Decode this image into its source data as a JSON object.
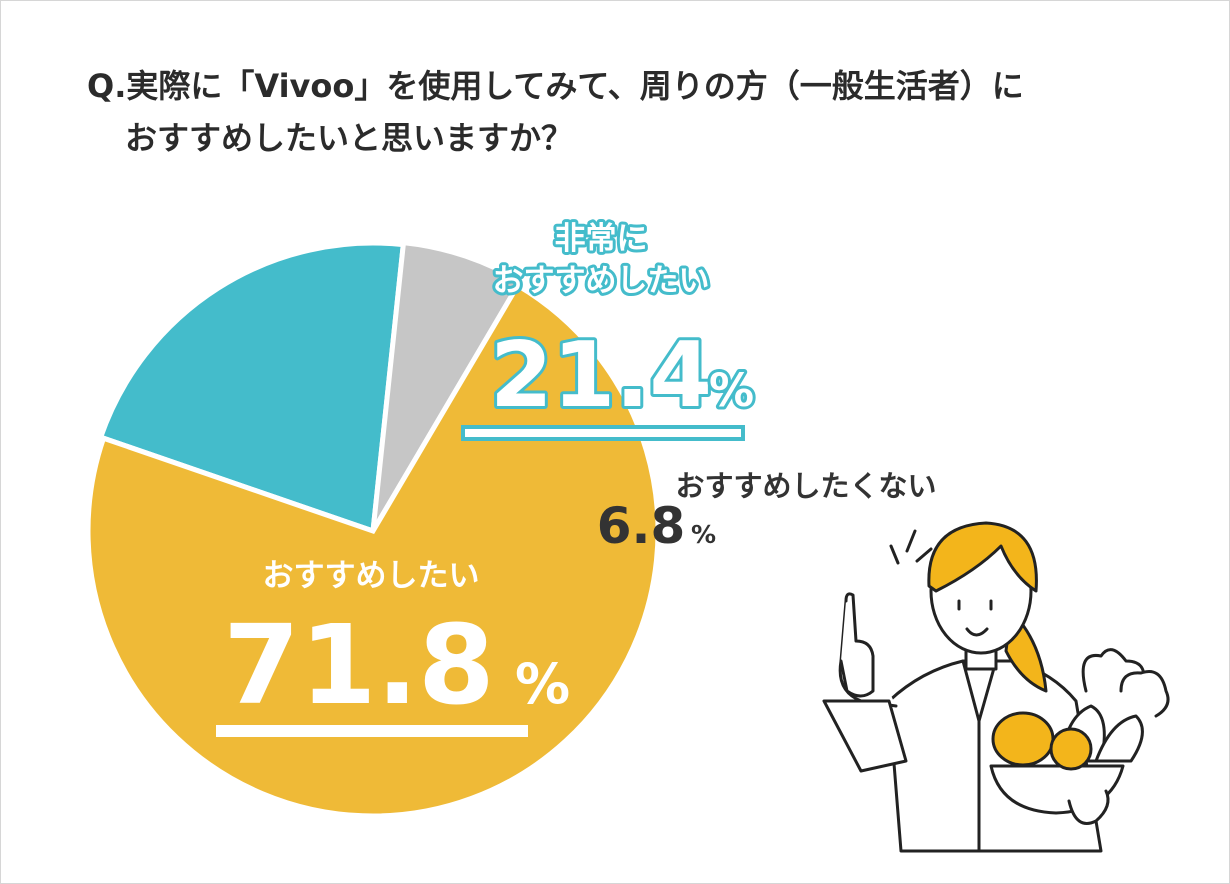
{
  "question": {
    "line1": "Q.実際に「Vivoo」を使用してみて、周りの方（一般生活者）に",
    "line2": "おすすめしたいと思いますか？"
  },
  "chart_data": {
    "type": "pie",
    "title": "Q.実際に「Vivoo」を使用してみて、周りの方（一般生活者）におすすめしたいと思いますか？",
    "slices": [
      {
        "label_lines": [
          "非常に",
          "おすすめしたい"
        ],
        "value": 21.4,
        "display": "21.4",
        "unit": "%",
        "color": "#44bccb",
        "text_color": "#ffffff",
        "outline": "#44bccb"
      },
      {
        "label_lines": [
          "おすすめしたくない"
        ],
        "value": 6.8,
        "display": "6.8",
        "unit": "%",
        "color": "#c6c6c6",
        "text_color": "#333333",
        "outline": ""
      },
      {
        "label_lines": [
          "おすすめしたい"
        ],
        "value": 71.8,
        "display": "71.8",
        "unit": "%",
        "color": "#efba37",
        "text_color": "#ffffff",
        "outline": ""
      }
    ]
  },
  "colors": {
    "text": "#2b2b2b",
    "skin": "#ffffff",
    "hair": "#f3b51b",
    "stroke": "#222222"
  },
  "illustration": {
    "icon": "doctor-holding-vegetable-bowl-icon"
  }
}
